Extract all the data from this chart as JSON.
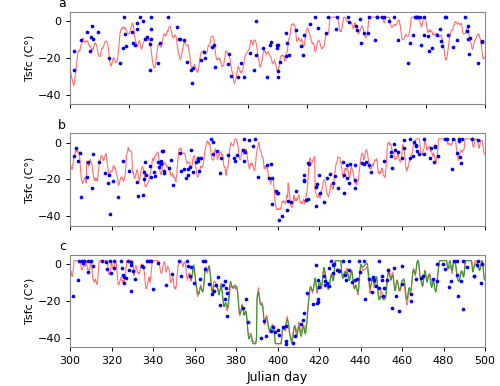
{
  "panel_a": {
    "xlim": [
      360,
      500
    ],
    "ylim": [
      -45,
      5
    ],
    "yticks": [
      -40,
      -20,
      0
    ],
    "xticks": [
      360,
      380,
      400,
      420,
      440,
      460,
      480,
      500
    ],
    "label": "a"
  },
  "panel_b": {
    "xlim": [
      300,
      500
    ],
    "ylim": [
      -45,
      5
    ],
    "yticks": [
      -40,
      -20,
      0
    ],
    "xticks": [
      300,
      320,
      340,
      360,
      380,
      400,
      420,
      440,
      460,
      480,
      500
    ],
    "label": "b"
  },
  "panel_c": {
    "xlim": [
      300,
      500
    ],
    "ylim": [
      -45,
      5
    ],
    "yticks": [
      -40,
      -20,
      0
    ],
    "xticks": [
      300,
      320,
      340,
      360,
      380,
      400,
      420,
      440,
      460,
      480,
      500
    ],
    "label": "c"
  },
  "ylabel": "Tsfc (C°)",
  "xlabel": "Julian day",
  "red_color": "#FF7070",
  "blue_color": "#0000EE",
  "green_color": "#339933",
  "fig_width": 5.0,
  "fig_height": 3.86,
  "dpi": 100
}
